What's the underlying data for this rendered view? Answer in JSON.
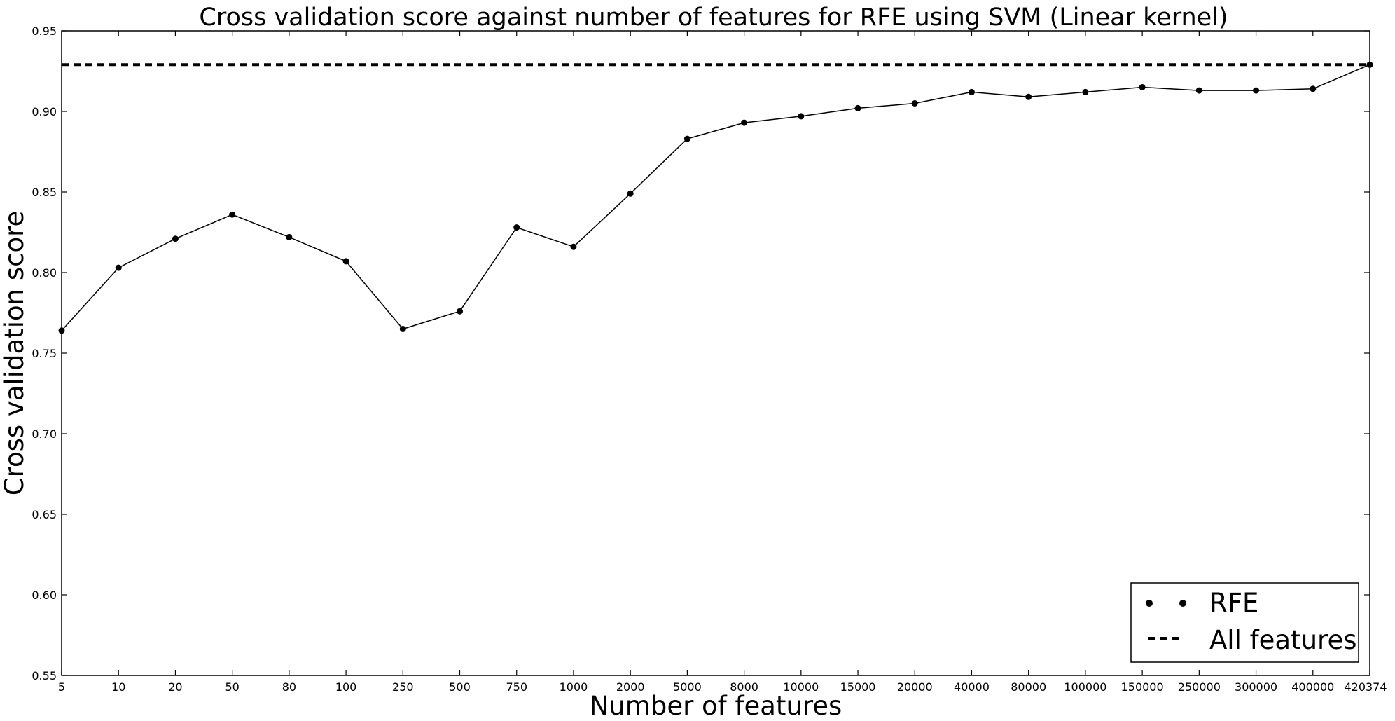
{
  "chart_data": {
    "type": "line",
    "title": "Cross validation score against number of features for RFE using SVM (Linear kernel)",
    "xlabel": "Number of features",
    "ylabel": "Cross validation score",
    "x_scale": "categorical",
    "categories": [
      "5",
      "10",
      "20",
      "50",
      "80",
      "100",
      "250",
      "500",
      "750",
      "1000",
      "2000",
      "5000",
      "8000",
      "10000",
      "15000",
      "20000",
      "40000",
      "80000",
      "100000",
      "150000",
      "250000",
      "300000",
      "400000",
      "420374"
    ],
    "ylim": [
      0.55,
      0.95
    ],
    "yticks": [
      "0.55",
      "0.60",
      "0.65",
      "0.70",
      "0.75",
      "0.80",
      "0.85",
      "0.90",
      "0.95"
    ],
    "grid": false,
    "legend_position": "lower-right",
    "series": [
      {
        "name": "RFE",
        "style": "solid line with dot markers",
        "color": "#000000",
        "values": [
          0.764,
          0.803,
          0.821,
          0.836,
          0.822,
          0.807,
          0.765,
          0.776,
          0.828,
          0.816,
          0.849,
          0.883,
          0.893,
          0.897,
          0.902,
          0.905,
          0.912,
          0.909,
          0.912,
          0.915,
          0.913,
          0.913,
          0.914,
          0.929
        ]
      },
      {
        "name": "All features",
        "style": "dashed horizontal line",
        "color": "#000000",
        "value": 0.929
      }
    ]
  }
}
